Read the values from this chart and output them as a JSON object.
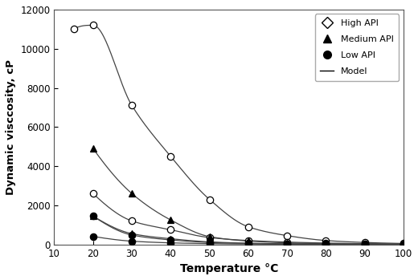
{
  "title": "",
  "xlabel": "Temperature °C",
  "ylabel": "Dynamic visccosity, cP",
  "xlim": [
    10,
    100
  ],
  "ylim": [
    0,
    12000
  ],
  "xticks": [
    10,
    20,
    30,
    40,
    50,
    60,
    70,
    80,
    90,
    100
  ],
  "yticks": [
    0,
    2000,
    4000,
    6000,
    8000,
    10000,
    12000
  ],
  "high_api_upper_x": [
    15,
    20,
    30,
    40,
    50,
    60,
    70,
    80,
    90,
    100
  ],
  "high_api_upper_y": [
    11000,
    11200,
    7100,
    4500,
    2300,
    900,
    450,
    200,
    100,
    50
  ],
  "high_api_lower_x": [
    20,
    30,
    40,
    50,
    60,
    70,
    80,
    90,
    100
  ],
  "high_api_lower_y": [
    2600,
    1200,
    750,
    350,
    200,
    120,
    70,
    40,
    20
  ],
  "med_api_upper_x": [
    20,
    30,
    40,
    50,
    60,
    70,
    80,
    90,
    100
  ],
  "med_api_upper_y": [
    4900,
    2600,
    1250,
    400,
    170,
    80,
    40,
    20,
    10
  ],
  "med_api_lower_x": [
    20,
    30,
    40,
    50,
    60,
    70,
    80,
    90,
    100
  ],
  "med_api_lower_y": [
    1450,
    550,
    290,
    130,
    60,
    30,
    15,
    8,
    5
  ],
  "low_api_upper_x": [
    20,
    30,
    40,
    50,
    60,
    70,
    80,
    90,
    100
  ],
  "low_api_upper_y": [
    1450,
    480,
    230,
    100,
    50,
    25,
    12,
    7,
    4
  ],
  "low_api_lower_x": [
    20,
    30,
    40,
    50,
    60,
    70,
    80,
    90,
    100
  ],
  "low_api_lower_y": [
    410,
    165,
    80,
    40,
    20,
    10,
    6,
    4,
    2
  ],
  "background_color": "#ffffff",
  "line_color": "#444444"
}
